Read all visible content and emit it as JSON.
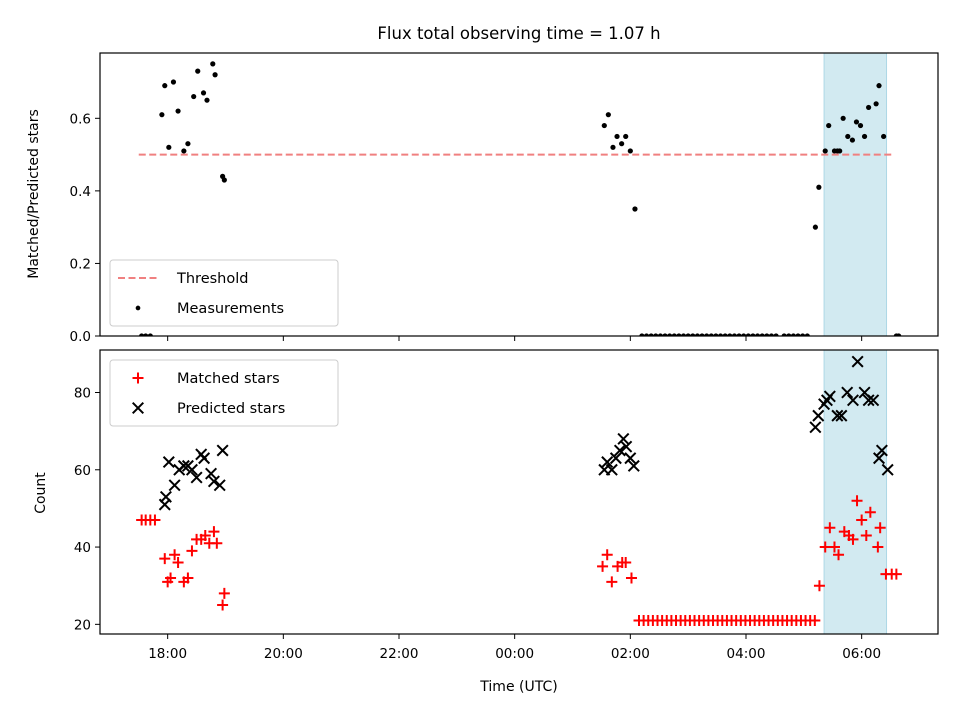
{
  "chart_data": {
    "type": "scatter",
    "title": "Flux total observing time = 1.07 h",
    "x_unit": "hours from 00:00 UTC",
    "xlabel": "Time (UTC)",
    "xlim": [
      -7.17,
      7.32
    ],
    "xticks": [
      {
        "value": -6,
        "label": "18:00"
      },
      {
        "value": -4,
        "label": "20:00"
      },
      {
        "value": -2,
        "label": "22:00"
      },
      {
        "value": 0,
        "label": "00:00"
      },
      {
        "value": 2,
        "label": "02:00"
      },
      {
        "value": 4,
        "label": "04:00"
      },
      {
        "value": 6,
        "label": "06:00"
      }
    ],
    "highlight_span": {
      "x0": 5.35,
      "x1": 6.43,
      "color": "#add8e6"
    },
    "panels": [
      {
        "ylabel": "Matched/Predicted stars",
        "ylim": [
          0.0,
          0.78
        ],
        "yticks": [
          0.0,
          0.2,
          0.4,
          0.6
        ],
        "ytick_labels": [
          "0.0",
          "0.2",
          "0.4",
          "0.6"
        ],
        "legend": {
          "position": "lower left",
          "entries": [
            "Threshold",
            "Measurements"
          ]
        },
        "threshold": {
          "name": "Threshold",
          "y": 0.5,
          "x0": -6.5,
          "x1": 6.55,
          "color": "#f08080",
          "style": "dashed"
        },
        "series": [
          {
            "name": "Measurements",
            "marker": "dot",
            "color": "#000000",
            "points": [
              [
                -6.45,
                0.0
              ],
              [
                -6.38,
                0.0
              ],
              [
                -6.3,
                0.0
              ],
              [
                -6.1,
                0.61
              ],
              [
                -6.05,
                0.69
              ],
              [
                -5.98,
                0.52
              ],
              [
                -5.9,
                0.7
              ],
              [
                -5.82,
                0.62
              ],
              [
                -5.72,
                0.51
              ],
              [
                -5.65,
                0.53
              ],
              [
                -5.55,
                0.66
              ],
              [
                -5.48,
                0.73
              ],
              [
                -5.38,
                0.67
              ],
              [
                -5.32,
                0.65
              ],
              [
                -5.22,
                0.75
              ],
              [
                -5.18,
                0.72
              ],
              [
                -5.05,
                0.44
              ],
              [
                -5.02,
                0.43
              ],
              [
                1.55,
                0.58
              ],
              [
                1.62,
                0.61
              ],
              [
                1.7,
                0.52
              ],
              [
                1.77,
                0.55
              ],
              [
                1.85,
                0.53
              ],
              [
                1.92,
                0.55
              ],
              [
                2.0,
                0.51
              ],
              [
                2.08,
                0.35
              ],
              [
                2.2,
                0.0
              ],
              [
                2.28,
                0.0
              ],
              [
                2.36,
                0.0
              ],
              [
                2.44,
                0.0
              ],
              [
                2.52,
                0.0
              ],
              [
                2.6,
                0.0
              ],
              [
                2.68,
                0.0
              ],
              [
                2.76,
                0.0
              ],
              [
                2.84,
                0.0
              ],
              [
                2.92,
                0.0
              ],
              [
                3.0,
                0.0
              ],
              [
                3.08,
                0.0
              ],
              [
                3.16,
                0.0
              ],
              [
                3.24,
                0.0
              ],
              [
                3.32,
                0.0
              ],
              [
                3.4,
                0.0
              ],
              [
                3.48,
                0.0
              ],
              [
                3.56,
                0.0
              ],
              [
                3.64,
                0.0
              ],
              [
                3.72,
                0.0
              ],
              [
                3.8,
                0.0
              ],
              [
                3.88,
                0.0
              ],
              [
                3.96,
                0.0
              ],
              [
                4.04,
                0.0
              ],
              [
                4.12,
                0.0
              ],
              [
                4.2,
                0.0
              ],
              [
                4.28,
                0.0
              ],
              [
                4.36,
                0.0
              ],
              [
                4.44,
                0.0
              ],
              [
                4.52,
                0.0
              ],
              [
                4.66,
                0.0
              ],
              [
                4.74,
                0.0
              ],
              [
                4.82,
                0.0
              ],
              [
                4.9,
                0.0
              ],
              [
                4.98,
                0.0
              ],
              [
                5.06,
                0.0
              ],
              [
                5.2,
                0.3
              ],
              [
                5.26,
                0.41
              ],
              [
                5.37,
                0.51
              ],
              [
                5.43,
                0.58
              ],
              [
                5.53,
                0.51
              ],
              [
                5.58,
                0.51
              ],
              [
                5.62,
                0.51
              ],
              [
                5.68,
                0.6
              ],
              [
                5.76,
                0.55
              ],
              [
                5.84,
                0.54
              ],
              [
                5.91,
                0.59
              ],
              [
                5.98,
                0.58
              ],
              [
                6.05,
                0.55
              ],
              [
                6.12,
                0.63
              ],
              [
                6.25,
                0.64
              ],
              [
                6.3,
                0.69
              ],
              [
                6.38,
                0.55
              ],
              [
                6.6,
                0.0
              ],
              [
                6.64,
                0.0
              ]
            ]
          }
        ]
      },
      {
        "ylabel": "Count",
        "ylim": [
          17.5,
          91.0
        ],
        "yticks": [
          20,
          40,
          60,
          80
        ],
        "ytick_labels": [
          "20",
          "40",
          "60",
          "80"
        ],
        "legend": {
          "position": "upper left",
          "entries": [
            "Matched stars",
            "Predicted stars"
          ]
        },
        "series": [
          {
            "name": "Matched stars",
            "marker": "plus",
            "color": "#ff0000",
            "points": [
              [
                -6.45,
                47
              ],
              [
                -6.38,
                47
              ],
              [
                -6.3,
                47
              ],
              [
                -6.22,
                47
              ],
              [
                -6.05,
                37
              ],
              [
                -6.0,
                31
              ],
              [
                -5.95,
                32
              ],
              [
                -5.88,
                38
              ],
              [
                -5.82,
                36
              ],
              [
                -5.72,
                31
              ],
              [
                -5.65,
                32
              ],
              [
                -5.58,
                39
              ],
              [
                -5.5,
                42
              ],
              [
                -5.42,
                42
              ],
              [
                -5.35,
                43
              ],
              [
                -5.28,
                41
              ],
              [
                -5.2,
                44
              ],
              [
                -5.15,
                41
              ],
              [
                -5.05,
                25
              ],
              [
                -5.02,
                28
              ],
              [
                1.52,
                35
              ],
              [
                1.6,
                38
              ],
              [
                1.68,
                31
              ],
              [
                1.78,
                35
              ],
              [
                1.86,
                36
              ],
              [
                1.92,
                36
              ],
              [
                2.02,
                32
              ],
              [
                2.15,
                21
              ],
              [
                2.23,
                21
              ],
              [
                2.31,
                21
              ],
              [
                2.39,
                21
              ],
              [
                2.47,
                21
              ],
              [
                2.55,
                21
              ],
              [
                2.63,
                21
              ],
              [
                2.71,
                21
              ],
              [
                2.79,
                21
              ],
              [
                2.87,
                21
              ],
              [
                2.95,
                21
              ],
              [
                3.03,
                21
              ],
              [
                3.11,
                21
              ],
              [
                3.19,
                21
              ],
              [
                3.27,
                21
              ],
              [
                3.35,
                21
              ],
              [
                3.43,
                21
              ],
              [
                3.51,
                21
              ],
              [
                3.59,
                21
              ],
              [
                3.67,
                21
              ],
              [
                3.75,
                21
              ],
              [
                3.83,
                21
              ],
              [
                3.91,
                21
              ],
              [
                3.99,
                21
              ],
              [
                4.07,
                21
              ],
              [
                4.15,
                21
              ],
              [
                4.23,
                21
              ],
              [
                4.31,
                21
              ],
              [
                4.39,
                21
              ],
              [
                4.47,
                21
              ],
              [
                4.55,
                21
              ],
              [
                4.63,
                21
              ],
              [
                4.71,
                21
              ],
              [
                4.79,
                21
              ],
              [
                4.87,
                21
              ],
              [
                4.95,
                21
              ],
              [
                5.03,
                21
              ],
              [
                5.11,
                21
              ],
              [
                5.19,
                21
              ],
              [
                5.27,
                30
              ],
              [
                5.37,
                40
              ],
              [
                5.45,
                45
              ],
              [
                5.53,
                40
              ],
              [
                5.6,
                38
              ],
              [
                5.7,
                44
              ],
              [
                5.78,
                43
              ],
              [
                5.85,
                42
              ],
              [
                5.92,
                52
              ],
              [
                6.0,
                47
              ],
              [
                6.08,
                43
              ],
              [
                6.15,
                49
              ],
              [
                6.28,
                40
              ],
              [
                6.32,
                45
              ],
              [
                6.42,
                33
              ],
              [
                6.52,
                33
              ],
              [
                6.6,
                33
              ]
            ]
          },
          {
            "name": "Predicted stars",
            "marker": "x",
            "color": "#000000",
            "points": [
              [
                -6.05,
                51
              ],
              [
                -6.03,
                53
              ],
              [
                -5.98,
                62
              ],
              [
                -5.88,
                56
              ],
              [
                -5.8,
                60
              ],
              [
                -5.72,
                61
              ],
              [
                -5.65,
                61
              ],
              [
                -5.58,
                60
              ],
              [
                -5.5,
                58
              ],
              [
                -5.42,
                64
              ],
              [
                -5.37,
                63
              ],
              [
                -5.25,
                59
              ],
              [
                -5.2,
                57
              ],
              [
                -5.1,
                56
              ],
              [
                -5.05,
                65
              ],
              [
                1.55,
                60
              ],
              [
                1.6,
                62
              ],
              [
                1.68,
                60
              ],
              [
                1.75,
                63
              ],
              [
                1.82,
                65
              ],
              [
                1.88,
                68
              ],
              [
                1.93,
                66
              ],
              [
                2.0,
                63
              ],
              [
                2.06,
                61
              ],
              [
                5.2,
                71
              ],
              [
                5.25,
                74
              ],
              [
                5.35,
                77
              ],
              [
                5.4,
                78
              ],
              [
                5.45,
                79
              ],
              [
                5.58,
                74
              ],
              [
                5.65,
                74
              ],
              [
                5.75,
                80
              ],
              [
                5.85,
                78
              ],
              [
                5.93,
                88
              ],
              [
                6.05,
                80
              ],
              [
                6.12,
                78
              ],
              [
                6.2,
                78
              ],
              [
                6.3,
                63
              ],
              [
                6.35,
                65
              ],
              [
                6.45,
                60
              ]
            ]
          }
        ]
      }
    ]
  }
}
